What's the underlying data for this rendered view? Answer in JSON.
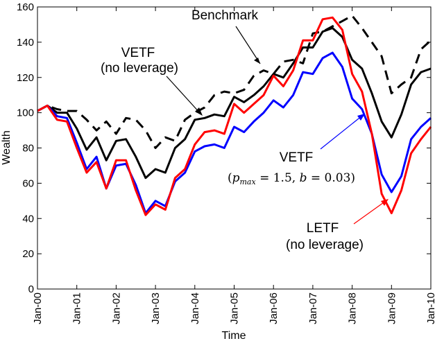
{
  "chart_data": {
    "type": "line",
    "title": "",
    "xlabel": "Time",
    "ylabel": "Wealth",
    "xlim": [
      0,
      40
    ],
    "ylim": [
      0,
      160
    ],
    "yticks": [
      0,
      20,
      40,
      60,
      80,
      100,
      120,
      140,
      160
    ],
    "xtick_labels": [
      "Jan-00",
      "Jan-01",
      "Jan-02",
      "Jan-03",
      "Jan-04",
      "Jan-05",
      "Jan-06",
      "Jan-07",
      "Jan-08",
      "Jan-09",
      "Jan-10"
    ],
    "x_unit": "quarters since Jan-00",
    "series": [
      {
        "name": "Benchmark",
        "color": "#000000",
        "style": "dashed",
        "values": [
          101,
          104,
          102,
          101,
          101,
          96,
          90,
          95,
          88,
          97,
          96,
          90,
          80,
          86,
          84,
          96,
          100,
          103,
          110,
          112,
          111,
          113,
          121,
          124,
          122,
          129,
          130,
          128,
          145,
          146,
          149,
          152,
          155,
          148,
          140,
          132,
          111,
          116,
          120,
          136,
          141
        ]
      },
      {
        "name": "VETF (no leverage)",
        "color": "#000000",
        "style": "solid",
        "values": [
          101,
          104,
          100,
          100,
          91,
          79,
          86,
          73,
          84,
          85,
          75,
          63,
          68,
          66,
          80,
          85,
          96,
          97,
          99,
          98,
          109,
          106,
          110,
          115,
          122,
          120,
          128,
          137,
          137,
          146,
          148,
          143,
          130,
          125,
          111,
          95,
          86,
          99,
          116,
          123,
          125
        ]
      },
      {
        "name": "VETF (p_max = 1.5, b = 0.03)",
        "color": "#0000ff",
        "style": "solid",
        "values": [
          101,
          104,
          98,
          97,
          83,
          68,
          75,
          57,
          70,
          71,
          59,
          43,
          50,
          47,
          61,
          66,
          78,
          81,
          82,
          80,
          92,
          89,
          95,
          100,
          107,
          103,
          110,
          123,
          122,
          131,
          134,
          126,
          108,
          102,
          88,
          65,
          55,
          64,
          85,
          92,
          97
        ]
      },
      {
        "name": "LETF (no leverage)",
        "color": "#ff0000",
        "style": "solid",
        "values": [
          101,
          104,
          96,
          95,
          80,
          66,
          72,
          57,
          73,
          73,
          56,
          42,
          48,
          45,
          63,
          68,
          82,
          89,
          90,
          88,
          105,
          100,
          105,
          110,
          121,
          115,
          124,
          141,
          141,
          153,
          154,
          147,
          122,
          112,
          88,
          54,
          43,
          56,
          77,
          85,
          92
        ]
      }
    ],
    "annotations": {
      "benchmark": "Benchmark",
      "vetf_nolev_line1": "VETF",
      "vetf_nolev_line2": "(no leverage)",
      "vetf_lev_line1": "VETF",
      "vetf_lev_params": "(pmax = 1.5, b = 0.03)",
      "letf_line1": "LETF",
      "letf_line2": "(no leverage)"
    }
  }
}
